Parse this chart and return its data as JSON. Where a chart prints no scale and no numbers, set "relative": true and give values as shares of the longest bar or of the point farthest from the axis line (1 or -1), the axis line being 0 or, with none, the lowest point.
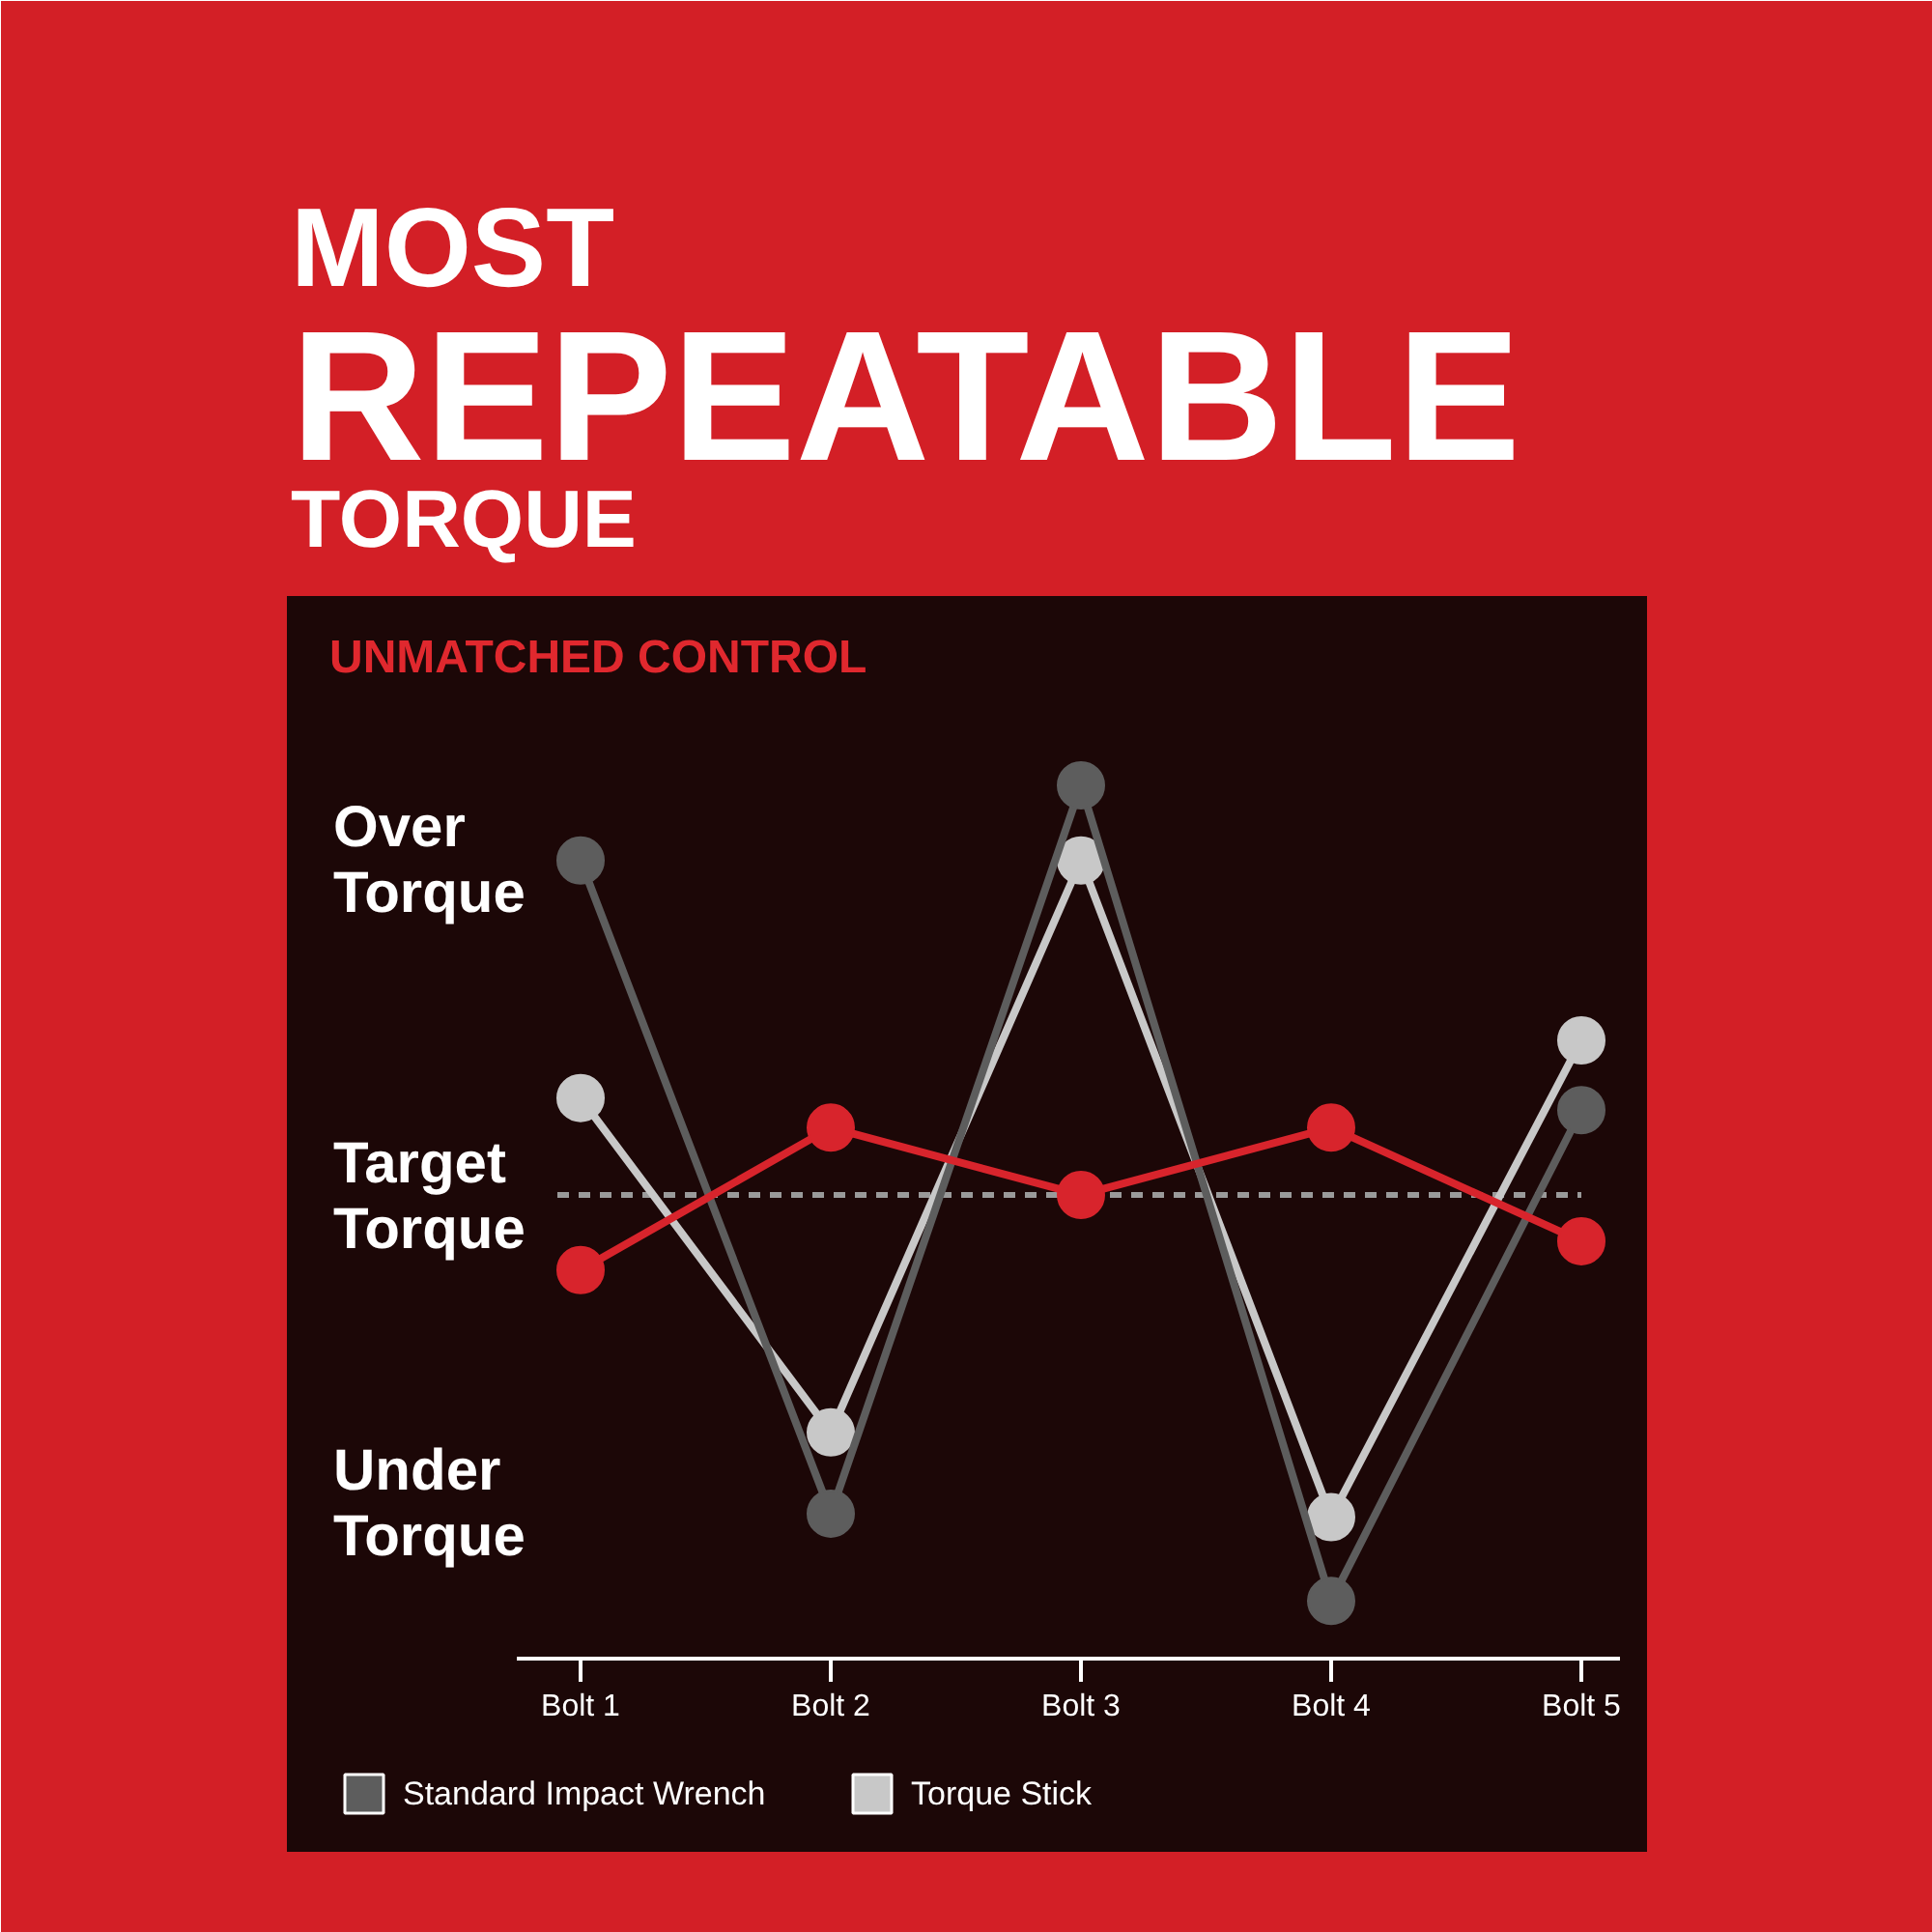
{
  "chart_data": {
    "type": "line",
    "title": "MOST REPEATABLE TORQUE",
    "subtitle": "UNMATCHED CONTROL",
    "relative": true,
    "categories": [
      "Bolt 1",
      "Bolt 2",
      "Bolt 3",
      "Bolt 4",
      "Bolt 5"
    ],
    "series": [
      {
        "color": "#d8242c",
        "values": [
          0.445,
          0.608,
          0.531,
          0.608,
          0.478
        ]
      },
      {
        "name": "Standard Impact Wrench",
        "color": "#5d5d5d",
        "values": [
          0.914,
          0.166,
          1.0,
          0.066,
          0.628
        ]
      },
      {
        "name": "Torque Stick",
        "color": "#c8c8c8",
        "values": [
          0.642,
          0.259,
          0.914,
          0.162,
          0.708
        ]
      }
    ],
    "ref_lines": [
      {
        "axis": "y",
        "value": 0.531,
        "label": "Target Torque",
        "color": "#9a9a9a",
        "line_style": "dashed"
      }
    ],
    "annotations": [
      "Over Torque",
      "Under Torque"
    ],
    "marker": "circle",
    "grid": false,
    "legend": "bottom"
  }
}
